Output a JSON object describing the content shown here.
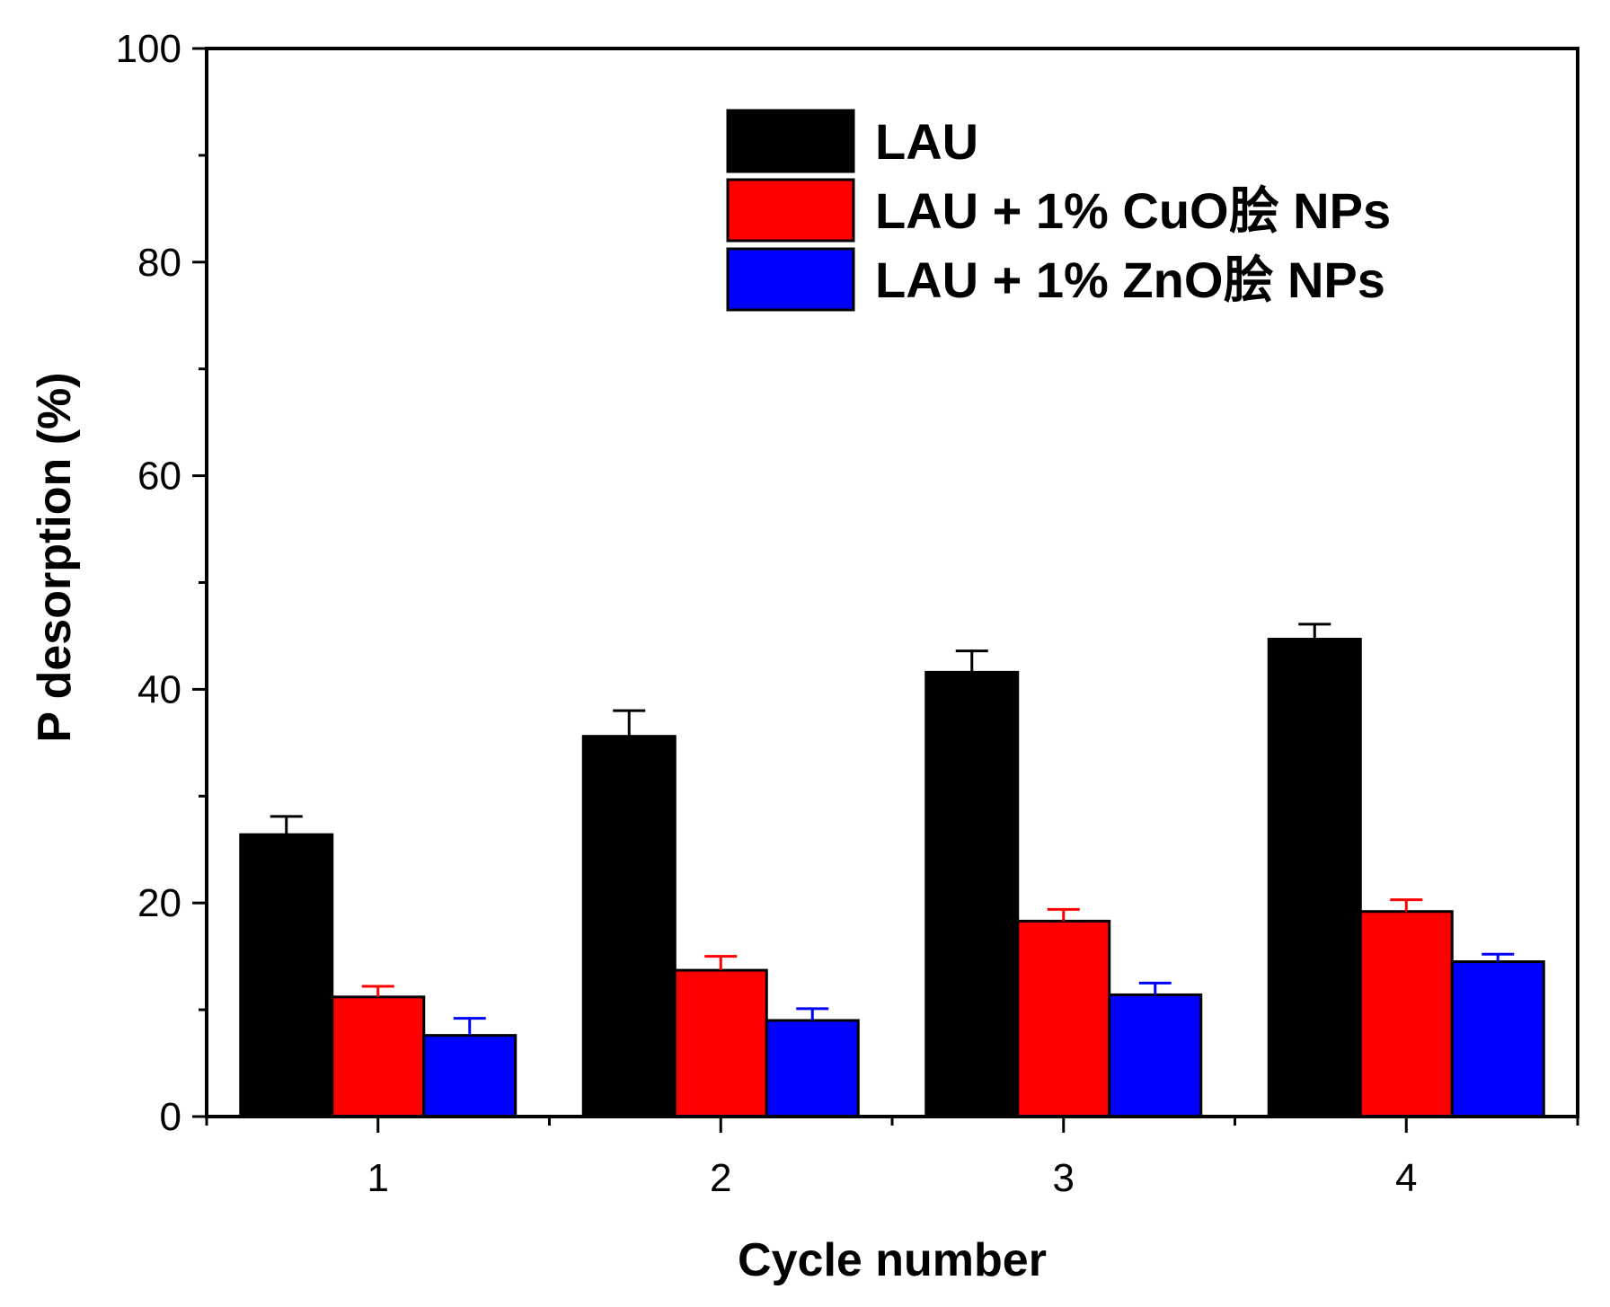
{
  "chart_data": {
    "type": "bar",
    "title": "",
    "xlabel": "Cycle number",
    "ylabel": "P desorption (%)",
    "categories": [
      "1",
      "2",
      "3",
      "4"
    ],
    "ylim": [
      0,
      100
    ],
    "yticks": [
      0,
      20,
      40,
      60,
      80,
      100
    ],
    "y_minor_step": 10,
    "grid": false,
    "legend_position": "top-right",
    "series": [
      {
        "name": "LAU",
        "color": "#000000",
        "values": [
          26.4,
          35.6,
          41.6,
          44.7
        ],
        "errors": [
          1.7,
          2.4,
          2.0,
          1.4
        ]
      },
      {
        "name": "LAU + 1% CuO脍 NPs",
        "color": "#ff0000",
        "values": [
          11.2,
          13.7,
          18.3,
          19.2
        ],
        "errors": [
          1.0,
          1.3,
          1.1,
          1.1
        ]
      },
      {
        "name": "LAU + 1% ZnO脍 NPs",
        "color": "#0000ff",
        "values": [
          7.6,
          9.0,
          11.4,
          14.5
        ],
        "errors": [
          1.6,
          1.1,
          1.1,
          0.7
        ]
      }
    ]
  }
}
